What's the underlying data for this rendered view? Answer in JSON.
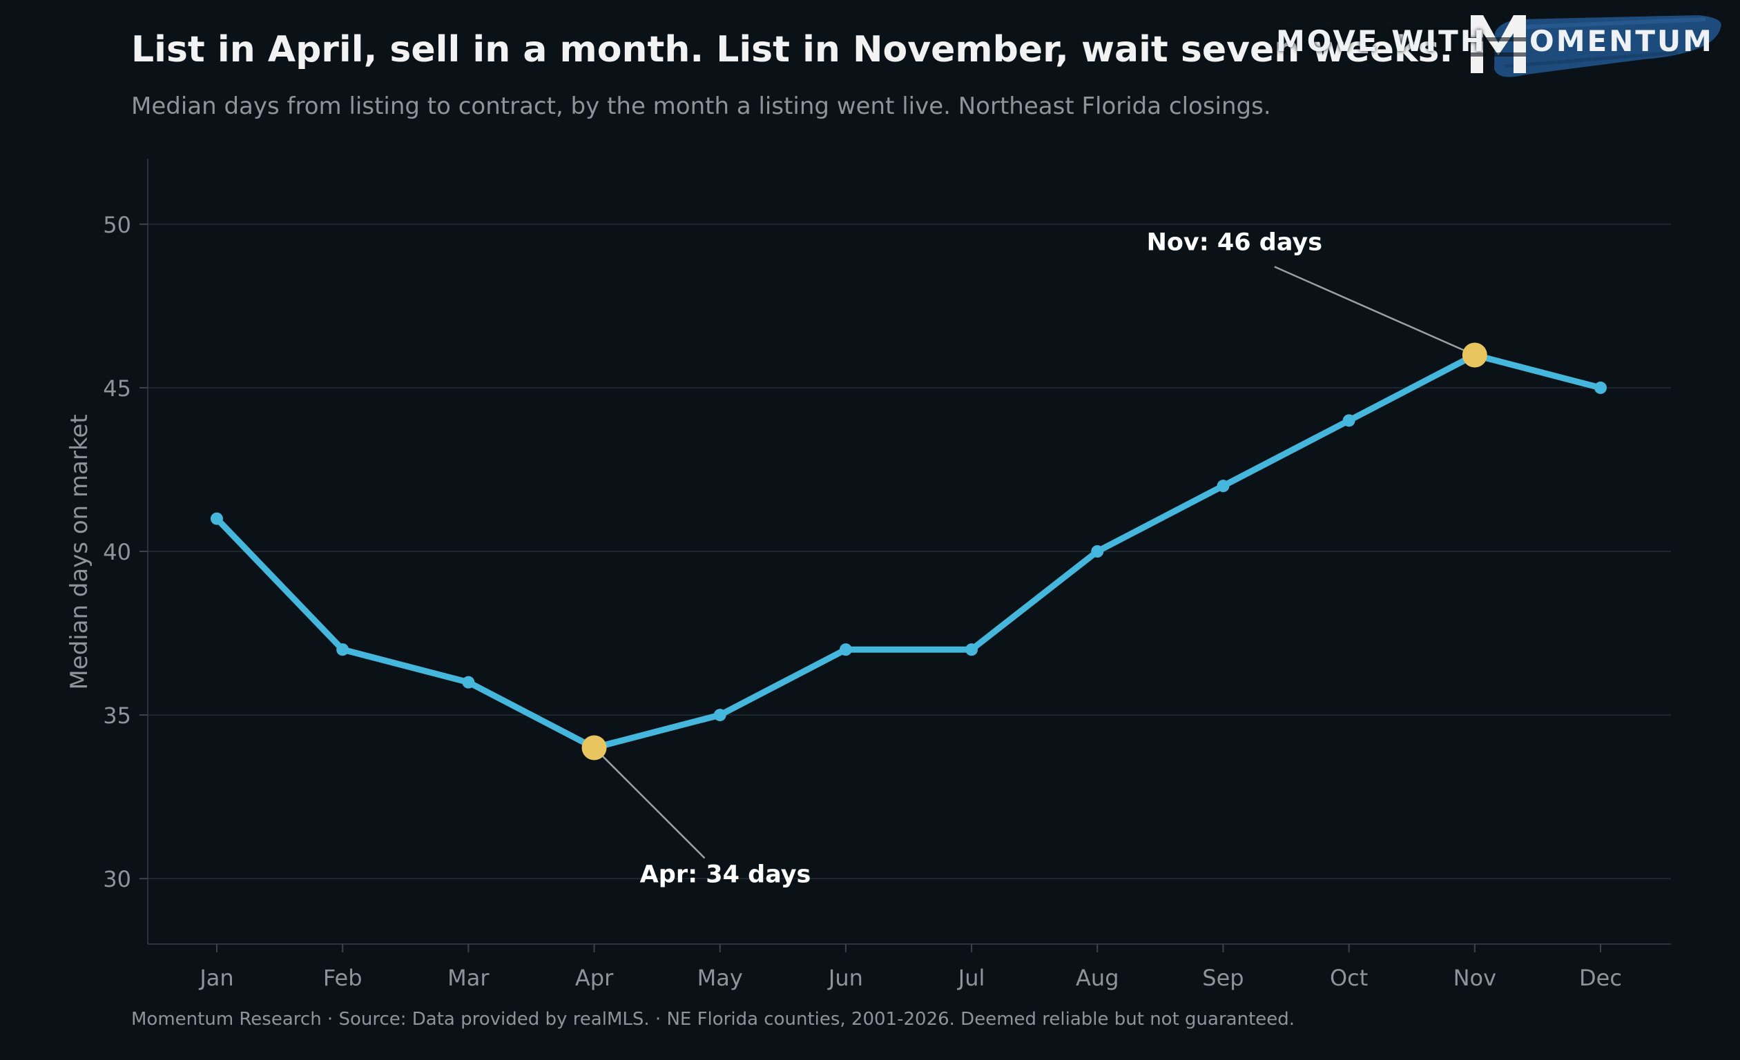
{
  "title": "List in April, sell in a month. List in November, wait seven weeks.",
  "subtitle": "Median days from listing to contract, by the month a listing went live. Northeast Florida closings.",
  "footer": "Momentum Research  ·  Source: Data provided by realMLS.  ·  NE Florida counties, 2001-2026. Deemed reliable but not guaranteed.",
  "logo": {
    "move_with": "MOVE WITH",
    "mark_letter": "M",
    "rest": "OMENTUM"
  },
  "colors": {
    "background": "#0a1117",
    "line": "#45b6dc",
    "highlight": "#e9c55f",
    "grid": "#1c2730",
    "axis_text": "#8d949b",
    "annotation_text": "#ffffff",
    "logo_brush": "#1f4f82"
  },
  "chart_data": {
    "type": "line",
    "categories": [
      "Jan",
      "Feb",
      "Mar",
      "Apr",
      "May",
      "Jun",
      "Jul",
      "Aug",
      "Sep",
      "Oct",
      "Nov",
      "Dec"
    ],
    "series": [
      {
        "values": [
          41,
          37,
          36,
          34,
          35,
          37,
          37,
          40,
          42,
          44,
          46,
          45
        ]
      }
    ],
    "ylabel": "Median days on market",
    "ylim": [
      28,
      52
    ],
    "yticks": [
      30,
      35,
      40,
      45,
      50
    ],
    "grid": true,
    "annotations": [
      {
        "category": "Apr",
        "value": 34,
        "text": "Apr: 34 days"
      },
      {
        "category": "Nov",
        "value": 46,
        "text": "Nov: 46 days"
      }
    ]
  }
}
